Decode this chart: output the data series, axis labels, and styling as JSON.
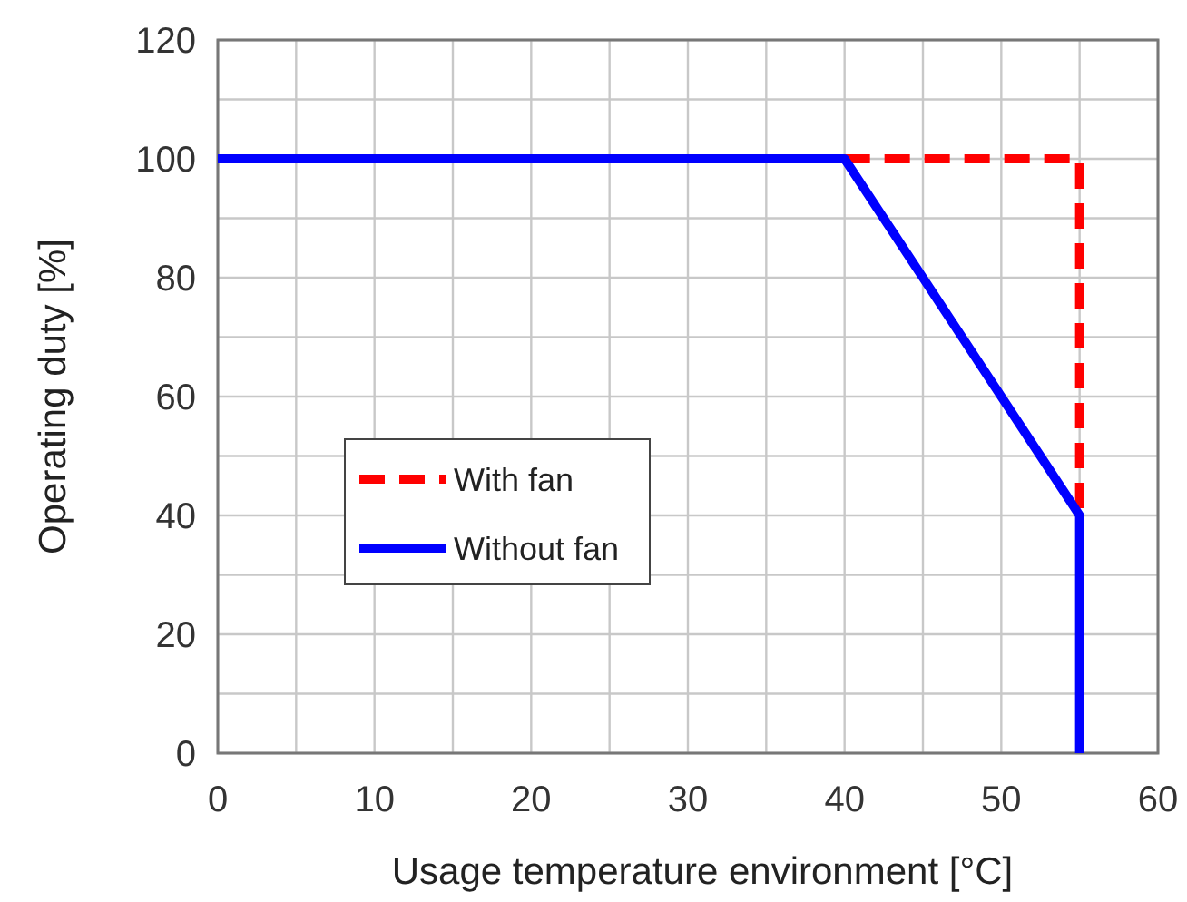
{
  "chart_data": {
    "type": "line",
    "xlabel": "Usage temperature environment [°C]",
    "ylabel": "Operating duty [%]",
    "xlim": [
      0,
      60
    ],
    "ylim": [
      0,
      120
    ],
    "xticks": [
      0,
      {
        "value": 5,
        "label": null
      },
      10,
      {
        "value": 15,
        "label": null
      },
      20,
      {
        "value": 25,
        "label": null
      },
      30,
      {
        "value": 35,
        "label": null
      },
      40,
      {
        "value": 45,
        "label": null
      },
      50,
      {
        "value": 55,
        "label": null
      },
      60
    ],
    "yticks": [
      0,
      {
        "value": 10,
        "label": null
      },
      20,
      {
        "value": 30,
        "label": null
      },
      40,
      {
        "value": 50,
        "label": null
      },
      60,
      {
        "value": 70,
        "label": null
      },
      80,
      {
        "value": 90,
        "label": null
      },
      100,
      {
        "value": 110,
        "label": null
      },
      120
    ],
    "grid": true,
    "legend": "left",
    "series": [
      {
        "name": "With fan",
        "color": "#ff0000",
        "line_style": "dashed",
        "x": [
          40,
          55,
          55
        ],
        "values": [
          100,
          100,
          40
        ]
      },
      {
        "name": "Without fan",
        "color": "#0000ff",
        "line_style": "solid",
        "x": [
          0,
          40,
          55,
          55
        ],
        "values": [
          100,
          100,
          40,
          0
        ]
      }
    ]
  }
}
